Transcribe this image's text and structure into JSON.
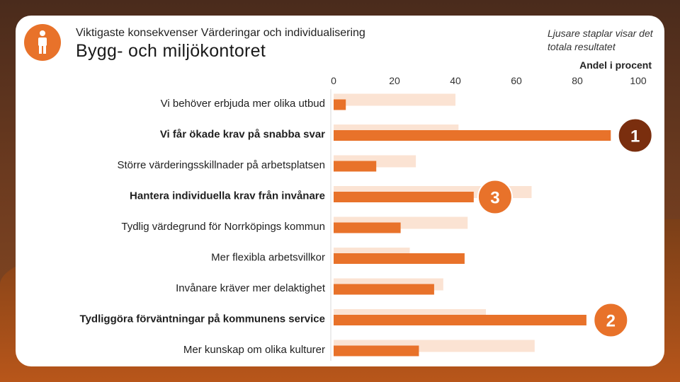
{
  "header": {
    "subtitle": "Viktigaste konsekvenser Värderingar och individualisering",
    "title": "Bygg- och miljökontoret",
    "note": "Ljusare staplar visar det totala resultatet",
    "badge_icon": "person-icon"
  },
  "colors": {
    "primary": "#e8722a",
    "total": "#fbe3d3",
    "rank_dark": "#7a2e0e",
    "rank_orange": "#e8722a"
  },
  "chart_data": {
    "type": "bar",
    "orientation": "horizontal",
    "title": "Bygg- och miljökontoret",
    "xlabel": "Andel i procent",
    "xlim": [
      0,
      100
    ],
    "xticks": [
      0,
      20,
      40,
      60,
      80,
      100
    ],
    "categories": [
      "Vi behöver erbjuda mer olika utbud",
      "Vi får ökade krav på snabba svar",
      "Större värderingsskillnader på arbetsplatsen",
      "Hantera individuella krav från invånare",
      "Tydlig värdegrund för Norrköpings kommun",
      "Mer flexibla arbetsvillkor",
      "Invånare kräver mer delaktighet",
      "Tydliggöra förväntningar på kommunens service",
      "Mer kunskap om olika kulturer"
    ],
    "bold_categories": [
      "Vi får ökade krav på snabba svar",
      "Hantera individuella krav från invånare",
      "Tydliggöra förväntningar på kommunens service"
    ],
    "series": [
      {
        "name": "Totalt resultat",
        "values": [
          40,
          41,
          27,
          65,
          44,
          25,
          36,
          50,
          66
        ]
      },
      {
        "name": "Bygg- och miljökontoret",
        "values": [
          4,
          91,
          14,
          46,
          22,
          43,
          33,
          83,
          28
        ]
      }
    ],
    "rank_markers": [
      {
        "label": "1",
        "category_index": 1,
        "x_value": 99,
        "style": "dark"
      },
      {
        "label": "3",
        "category_index": 3,
        "x_value": 53,
        "style": "orange"
      },
      {
        "label": "2",
        "category_index": 7,
        "x_value": 91,
        "style": "orange"
      }
    ]
  }
}
